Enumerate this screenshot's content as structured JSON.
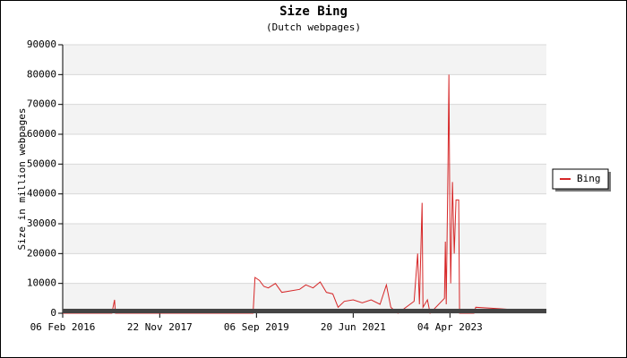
{
  "chart_data": {
    "type": "line",
    "title": "Size Bing",
    "subtitle": "(Dutch webpages)",
    "y_label": "Size in million webpages",
    "x": [
      "2016-02-06",
      "2017-01-03",
      "2017-01-21",
      "2017-01-27",
      "2019-08-14",
      "2019-08-27",
      "2019-09-26",
      "2019-10-26",
      "2019-11-25",
      "2020-01-12",
      "2020-02-24",
      "2020-04-24",
      "2020-06-23",
      "2020-08-04",
      "2020-09-22",
      "2020-11-09",
      "2020-12-21",
      "2021-02-02",
      "2021-03-10",
      "2021-04-21",
      "2021-06-20",
      "2021-08-20",
      "2021-10-19",
      "2021-12-18",
      "2022-01-30",
      "2022-03-01",
      "2022-04-18",
      "2022-08-05",
      "2022-08-29",
      "2022-09-10",
      "2022-09-28",
      "2022-10-04",
      "2022-11-03",
      "2022-11-21",
      "2023-02-26",
      "2023-03-04",
      "2023-03-10",
      "2023-03-22",
      "2023-03-28",
      "2023-04-03",
      "2023-04-09",
      "2023-04-21",
      "2023-05-03",
      "2023-05-15",
      "2023-06-02",
      "2023-06-08",
      "2023-09-13",
      "2023-09-25",
      "2024-03-12",
      "2024-07-29"
    ],
    "series": [
      {
        "name": "Bing",
        "color": "#d62728",
        "values": [
          0,
          0,
          4500,
          0,
          0,
          12000,
          11000,
          9000,
          8500,
          10000,
          7000,
          7500,
          8000,
          9500,
          8500,
          10500,
          7000,
          6500,
          2000,
          4000,
          4500,
          3500,
          4500,
          3000,
          9500,
          2000,
          0,
          4000,
          20000,
          3000,
          37000,
          2000,
          4500,
          0,
          5000,
          24000,
          3000,
          50000,
          80000,
          35000,
          10000,
          44000,
          20000,
          38000,
          38000,
          0,
          0,
          2000,
          1500,
          1000
        ]
      }
    ],
    "xlim": [
      "2016-02-06",
      "2025-01-14"
    ],
    "xticks": [
      {
        "value": "2016-02-06",
        "label": "06 Feb 2016"
      },
      {
        "value": "2017-11-22",
        "label": "22 Nov 2017"
      },
      {
        "value": "2019-09-06",
        "label": "06 Sep 2019"
      },
      {
        "value": "2021-06-20",
        "label": "20 Jun 2021"
      },
      {
        "value": "2023-04-04",
        "label": "04 Apr 2023"
      }
    ],
    "ylim": [
      0,
      90000
    ],
    "yticks": [
      0,
      10000,
      20000,
      30000,
      40000,
      50000,
      60000,
      70000,
      80000,
      90000
    ],
    "grid": true,
    "legend": "right"
  }
}
